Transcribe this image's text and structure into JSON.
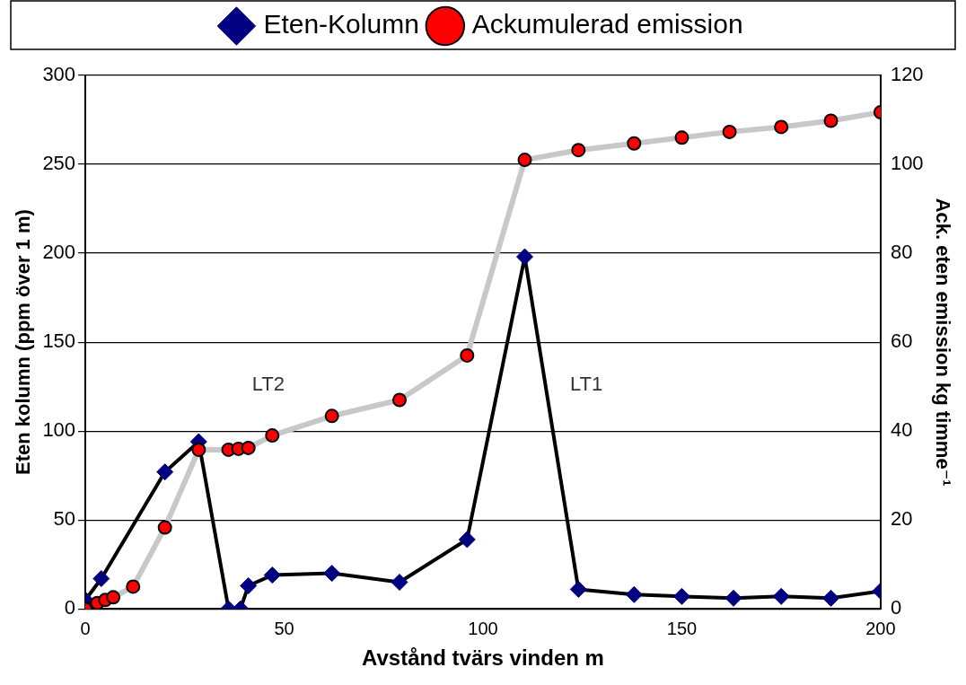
{
  "chart_data": {
    "type": "line",
    "xlabel": "Avstånd tvärs vinden m",
    "ylabel": "Eten kolumn (ppm över 1 m)",
    "y2label": "Ack. eten emission kg timme⁻¹",
    "xlim": [
      0,
      200
    ],
    "xticks": [
      0,
      50,
      100,
      150,
      200
    ],
    "ylim": [
      0,
      300
    ],
    "yticks": [
      0,
      50,
      100,
      150,
      200,
      250,
      300
    ],
    "y2lim": [
      0,
      120
    ],
    "y2ticks": [
      0,
      20,
      40,
      60,
      80,
      100,
      120
    ],
    "grid": "y",
    "legend": "top",
    "line_style": "solid",
    "annotations": [
      "LT2",
      "LT1"
    ],
    "series": [
      {
        "name": "Eten-Kolumn",
        "color": "#000080",
        "marker": "diamond",
        "x": [
          0,
          4,
          7,
          12,
          20,
          28.5,
          36,
          39,
          41,
          47,
          62,
          79,
          96,
          110.5,
          124,
          138,
          150,
          163,
          175,
          187.5,
          200
        ],
        "values": [
          5,
          17,
          null,
          null,
          77,
          94,
          0,
          0,
          13,
          19,
          20,
          15,
          39,
          198,
          11,
          8,
          7,
          6,
          7,
          6,
          10
        ]
      },
      {
        "name": "Ackumulerad emission",
        "color": "#ff0000",
        "marker": "circle",
        "axis": "y2",
        "x": [
          0,
          2,
          3,
          5,
          7,
          12,
          20,
          28.5,
          36,
          38.5,
          41,
          47,
          62,
          79,
          96,
          110.5,
          124,
          138,
          150,
          162,
          175,
          187.5,
          200
        ],
        "values": [
          0,
          null,
          1.3,
          2,
          2.6,
          5,
          18.3,
          35.8,
          35.8,
          36,
          36.2,
          39,
          43.4,
          47,
          57,
          101,
          103.2,
          104.7,
          106,
          107.3,
          108.4,
          109.8,
          111.7
        ]
      }
    ]
  }
}
